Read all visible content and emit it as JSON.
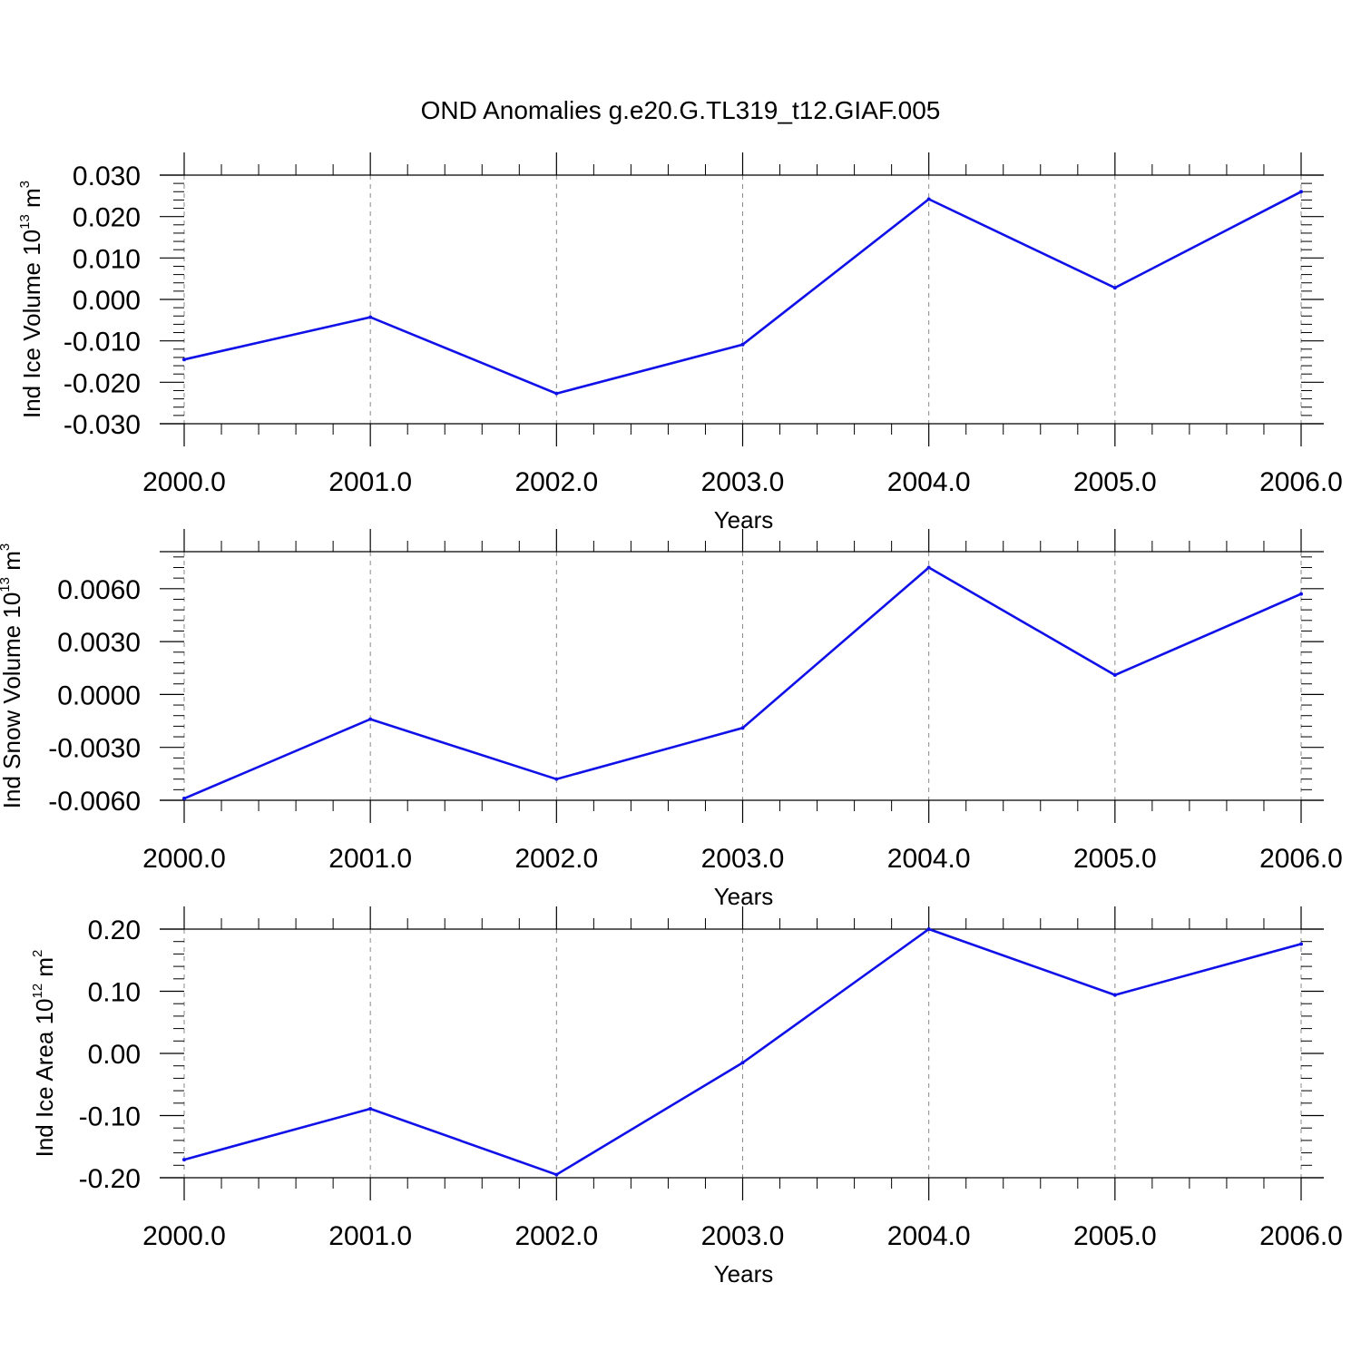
{
  "figure": {
    "title": "OND Anomalies g.e20.G.TL319_t12.GIAF.005"
  },
  "chart_data": [
    {
      "type": "line",
      "ylabel": "Ind Ice Volume 10",
      "ylabel_exp": "13",
      "ylabel_unit": " m",
      "ylabel_unit_exp": "3",
      "xlabel": "Years",
      "x": [
        2000,
        2001,
        2002,
        2003,
        2004,
        2005,
        2006
      ],
      "values": [
        -0.0145,
        -0.0043,
        -0.0227,
        -0.0109,
        0.0242,
        0.0028,
        0.026
      ],
      "xlim": [
        2000,
        2006.12
      ],
      "ylim": [
        -0.03,
        0.03
      ],
      "yticks": [
        -0.03,
        -0.02,
        -0.01,
        0,
        0.01,
        0.02,
        0.03
      ],
      "yticklabels": [
        "-0.030",
        "-0.020",
        "-0.010",
        "0.000",
        "0.010",
        "0.020",
        "0.030"
      ],
      "xticklabels": [
        "2000.0",
        "2001.0",
        "2002.0",
        "2003.0",
        "2004.0",
        "2005.0",
        "2006.0"
      ],
      "grid": "vertical-dashed",
      "line_color": "#1010e8"
    },
    {
      "type": "line",
      "ylabel": "Ind Snow Volume 10",
      "ylabel_exp": "13",
      "ylabel_unit": " m",
      "ylabel_unit_exp": "3",
      "xlabel": "Years",
      "x": [
        2000,
        2001,
        2002,
        2003,
        2004,
        2005,
        2006
      ],
      "values": [
        -0.0059,
        -0.0014,
        -0.0048,
        -0.0019,
        0.0072,
        0.0011,
        0.0057
      ],
      "xlim": [
        2000,
        2006.12
      ],
      "ylim": [
        -0.006,
        0.0081
      ],
      "yticks": [
        -0.006,
        -0.003,
        0,
        0.003,
        0.006
      ],
      "yticklabels": [
        "-0.0060",
        "-0.0030",
        "0.0000",
        "0.0030",
        "0.0060"
      ],
      "xticklabels": [
        "2000.0",
        "2001.0",
        "2002.0",
        "2003.0",
        "2004.0",
        "2005.0",
        "2006.0"
      ],
      "grid": "vertical-dashed",
      "line_color": "#1010e8"
    },
    {
      "type": "line",
      "ylabel": "Ind Ice Area 10",
      "ylabel_exp": "12",
      "ylabel_unit": " m",
      "ylabel_unit_exp": "2",
      "xlabel": "Years",
      "x": [
        2000,
        2001,
        2002,
        2003,
        2004,
        2005,
        2006
      ],
      "values": [
        -0.171,
        -0.089,
        -0.195,
        -0.015,
        0.2,
        0.094,
        0.176
      ],
      "xlim": [
        2000,
        2006.12
      ],
      "ylim": [
        -0.2,
        0.2
      ],
      "yticks": [
        -0.2,
        -0.1,
        0,
        0.1,
        0.2
      ],
      "yticklabels": [
        "-0.20",
        "-0.10",
        "0.00",
        "0.10",
        "0.20"
      ],
      "xticklabels": [
        "2000.0",
        "2001.0",
        "2002.0",
        "2003.0",
        "2004.0",
        "2005.0",
        "2006.0"
      ],
      "grid": "vertical-dashed",
      "line_color": "#1010e8"
    }
  ]
}
